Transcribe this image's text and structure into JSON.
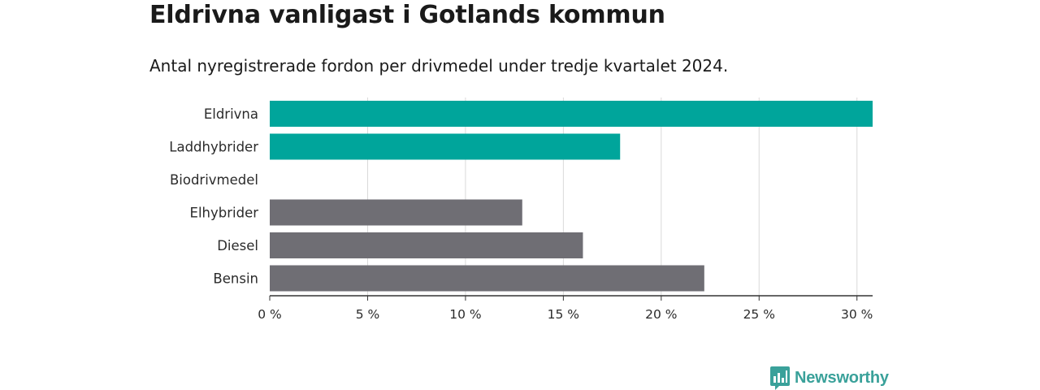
{
  "title": "Eldrivna vanligast i Gotlands kommun",
  "subtitle": "Antal nyregistrerade fordon per drivmedel under tredje kvartalet 2024.",
  "brand": {
    "name": "Newsworthy",
    "icon": "newsworthy-logo-icon"
  },
  "colors": {
    "highlight": "#00a59b",
    "neutral": "#6f6e74",
    "grid": "#d9d9d9",
    "axis": "#333333"
  },
  "chart_data": {
    "type": "bar",
    "orientation": "horizontal",
    "categories": [
      "Eldrivna",
      "Laddhybrider",
      "Biodrivmedel",
      "Elhybrider",
      "Diesel",
      "Bensin"
    ],
    "values": [
      30.8,
      17.9,
      0,
      12.9,
      16.0,
      22.2
    ],
    "highlighted": [
      true,
      true,
      false,
      false,
      false,
      false
    ],
    "xlim": [
      0,
      30.8
    ],
    "xticks": [
      0,
      5,
      10,
      15,
      20,
      25,
      30
    ],
    "xtick_labels": [
      "0 %",
      "5 %",
      "10 %",
      "15 %",
      "20 %",
      "25 %",
      "30 %"
    ],
    "xlabel": "",
    "ylabel": "",
    "grid": "vertical"
  }
}
